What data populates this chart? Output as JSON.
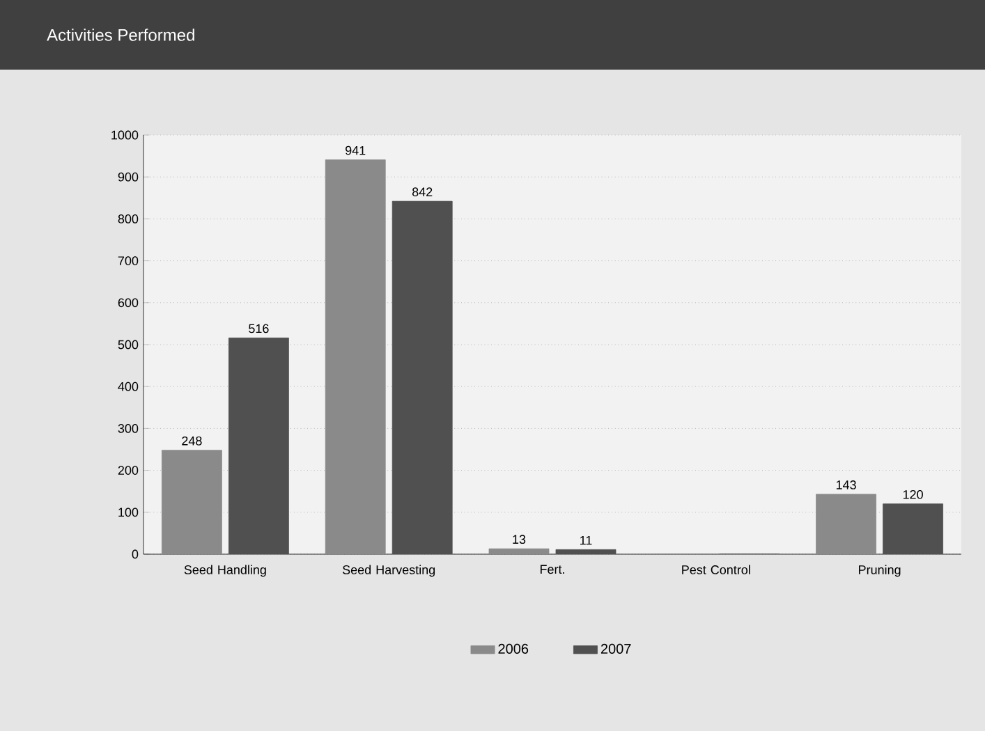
{
  "chart_data": {
    "type": "bar",
    "title": "Activities Performed",
    "categories": [
      "Seed Handling",
      "Seed Harvesting",
      "Fert.",
      "Pest Control",
      "Pruning"
    ],
    "series": [
      {
        "name": "2006",
        "color": "#8a8a8a",
        "values": [
          248,
          941,
          13,
          0,
          143
        ],
        "value_labels": [
          "248",
          "941",
          "13",
          null,
          "143"
        ]
      },
      {
        "name": "2007",
        "color": "#505050",
        "values": [
          516,
          842,
          11,
          0,
          120
        ],
        "value_labels": [
          "516",
          "842",
          "11",
          null,
          "120"
        ]
      }
    ],
    "ylim": [
      0,
      1000
    ],
    "yticks": [
      0,
      100,
      200,
      300,
      400,
      500,
      600,
      700,
      800,
      900,
      1000
    ],
    "grid": "y",
    "legend": "bottom"
  }
}
